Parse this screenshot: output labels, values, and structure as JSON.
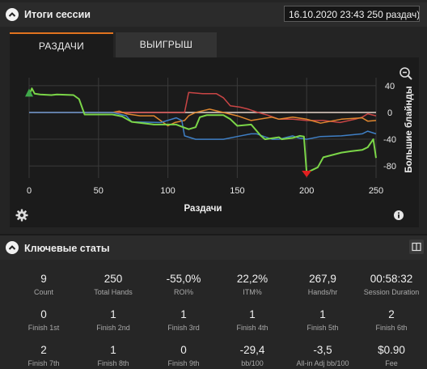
{
  "session_panel": {
    "title": "Итоги сессии",
    "session_select": "16.10.2020 23:43 250 раздач)",
    "tabs": [
      {
        "label": "РАЗДАЧИ",
        "active": true
      },
      {
        "label": "ВЫИГРЫШ",
        "active": false
      }
    ]
  },
  "chart_data": {
    "type": "line",
    "xlabel": "Раздачи",
    "ylabel": "Большие блайнды",
    "xlim": [
      0,
      250
    ],
    "ylim": [
      -98,
      52
    ],
    "x_ticks": [
      "0",
      "50",
      "100",
      "150",
      "200",
      "250"
    ],
    "y_ticks": [
      "40",
      "0",
      "-40",
      "-80"
    ],
    "grid": true,
    "min_marker_x": 200,
    "series": [
      {
        "color": "#7bd648",
        "points": [
          [
            0,
            25
          ],
          [
            2,
            36
          ],
          [
            4,
            28
          ],
          [
            8,
            27
          ],
          [
            16,
            26
          ],
          [
            20,
            27
          ],
          [
            32,
            26
          ],
          [
            36,
            20
          ],
          [
            40,
            -3
          ],
          [
            60,
            -3
          ],
          [
            67,
            -6
          ],
          [
            74,
            -14
          ],
          [
            90,
            -18
          ],
          [
            106,
            -18
          ],
          [
            111,
            -22
          ],
          [
            115,
            -25
          ],
          [
            120,
            -22
          ],
          [
            123,
            -7
          ],
          [
            128,
            -4
          ],
          [
            140,
            -4
          ],
          [
            145,
            -10
          ],
          [
            150,
            -20
          ],
          [
            160,
            -18
          ],
          [
            167,
            -35
          ],
          [
            170,
            -40
          ],
          [
            180,
            -37
          ],
          [
            182,
            -40
          ],
          [
            190,
            -38
          ],
          [
            195,
            -35
          ],
          [
            198,
            -36
          ],
          [
            200,
            -90
          ],
          [
            208,
            -82
          ],
          [
            212,
            -67
          ],
          [
            225,
            -60
          ],
          [
            232,
            -58
          ],
          [
            240,
            -56
          ],
          [
            244,
            -52
          ],
          [
            248,
            -40
          ],
          [
            250,
            -68
          ]
        ]
      },
      {
        "color": "#3f7fc5",
        "points": [
          [
            0,
            0
          ],
          [
            60,
            0
          ],
          [
            70,
            -5
          ],
          [
            74,
            -14
          ],
          [
            95,
            -15
          ],
          [
            106,
            -8
          ],
          [
            110,
            -12
          ],
          [
            112,
            -35
          ],
          [
            120,
            -40
          ],
          [
            140,
            -40
          ],
          [
            150,
            -36
          ],
          [
            160,
            -32
          ],
          [
            164,
            -32
          ],
          [
            168,
            -35
          ],
          [
            175,
            -40
          ],
          [
            180,
            -40
          ],
          [
            190,
            -35
          ],
          [
            194,
            -38
          ],
          [
            200,
            -40
          ],
          [
            210,
            -36
          ],
          [
            225,
            -35
          ],
          [
            240,
            -32
          ],
          [
            244,
            -28
          ],
          [
            250,
            -32
          ]
        ]
      },
      {
        "color": "#e0872f",
        "points": [
          [
            0,
            0
          ],
          [
            60,
            0
          ],
          [
            65,
            2
          ],
          [
            70,
            -2
          ],
          [
            80,
            -5
          ],
          [
            90,
            -5
          ],
          [
            100,
            -20
          ],
          [
            105,
            -15
          ],
          [
            112,
            -12
          ],
          [
            115,
            -5
          ],
          [
            120,
            0
          ],
          [
            130,
            5
          ],
          [
            140,
            0
          ],
          [
            150,
            -5
          ],
          [
            160,
            -12
          ],
          [
            175,
            -7
          ],
          [
            180,
            -10
          ],
          [
            190,
            -7
          ],
          [
            200,
            -10
          ],
          [
            210,
            -16
          ],
          [
            225,
            -10
          ],
          [
            240,
            -8
          ],
          [
            244,
            -13
          ],
          [
            250,
            -12
          ]
        ]
      },
      {
        "color": "#c94545",
        "points": [
          [
            0,
            0
          ],
          [
            112,
            0
          ],
          [
            115,
            30
          ],
          [
            125,
            28
          ],
          [
            135,
            28
          ],
          [
            140,
            22
          ],
          [
            145,
            10
          ],
          [
            152,
            8
          ],
          [
            158,
            5
          ],
          [
            165,
            0
          ],
          [
            172,
            -4
          ],
          [
            180,
            -10
          ],
          [
            190,
            -10
          ],
          [
            200,
            -12
          ],
          [
            212,
            -12
          ],
          [
            224,
            -15
          ],
          [
            235,
            -10
          ],
          [
            240,
            -7
          ],
          [
            244,
            -2
          ],
          [
            250,
            -5
          ]
        ]
      },
      {
        "color": "#c9b6ab",
        "points": [
          [
            0,
            0
          ],
          [
            250,
            0
          ]
        ]
      }
    ]
  },
  "stats_panel": {
    "title": "Ключевые статы",
    "rows": [
      [
        {
          "value": "9",
          "label": "Count"
        },
        {
          "value": "250",
          "label": "Total Hands"
        },
        {
          "value": "-55,0%",
          "label": "ROI%"
        },
        {
          "value": "22,2%",
          "label": "ITM%"
        },
        {
          "value": "267,9",
          "label": "Hands/hr"
        },
        {
          "value": "00:58:32",
          "label": "Session Duration"
        }
      ],
      [
        {
          "value": "0",
          "label": "Finish 1st"
        },
        {
          "value": "1",
          "label": "Finish 2nd"
        },
        {
          "value": "1",
          "label": "Finish 3rd"
        },
        {
          "value": "1",
          "label": "Finish 4th"
        },
        {
          "value": "1",
          "label": "Finish 5th"
        },
        {
          "value": "2",
          "label": "Finish 6th"
        }
      ],
      [
        {
          "value": "2",
          "label": "Finish 7th"
        },
        {
          "value": "1",
          "label": "Finish 8th"
        },
        {
          "value": "0",
          "label": "Finish 9th"
        },
        {
          "value": "-29,4",
          "label": "bb/100"
        },
        {
          "value": "-3,5",
          "label": "All-in Adj bb/100"
        },
        {
          "value": "$0.90",
          "label": "Fee"
        }
      ]
    ]
  }
}
